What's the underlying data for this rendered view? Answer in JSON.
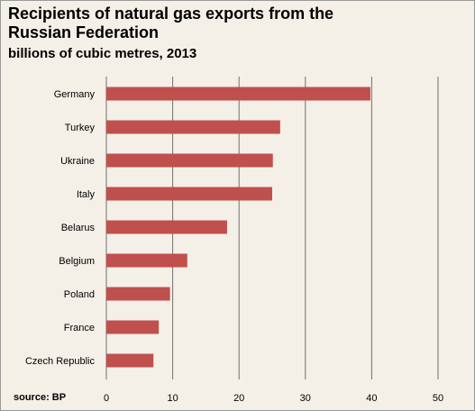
{
  "title": "Recipients of natural gas exports from the Russian Federation",
  "subtitle": "billions of cubic metres, 2013",
  "source": "source: BP",
  "colors": {
    "bar": "#c0504d",
    "gridline": "#707070",
    "background": "#f4f0e8"
  },
  "chart_data": {
    "type": "bar",
    "orientation": "horizontal",
    "title": "Recipients of natural gas exports from the Russian Federation",
    "subtitle": "billions of cubic metres, 2013",
    "categories": [
      "Germany",
      "Turkey",
      "Ukraine",
      "Italy",
      "Belarus",
      "Belgium",
      "Poland",
      "France",
      "Czech Republic"
    ],
    "values": [
      39.8,
      26.2,
      25.1,
      25.0,
      18.2,
      12.2,
      9.6,
      7.9,
      7.1
    ],
    "xlim": [
      0,
      50
    ],
    "xticks": [
      0,
      10,
      20,
      30,
      40,
      50
    ],
    "grid": true,
    "legend": "none"
  }
}
